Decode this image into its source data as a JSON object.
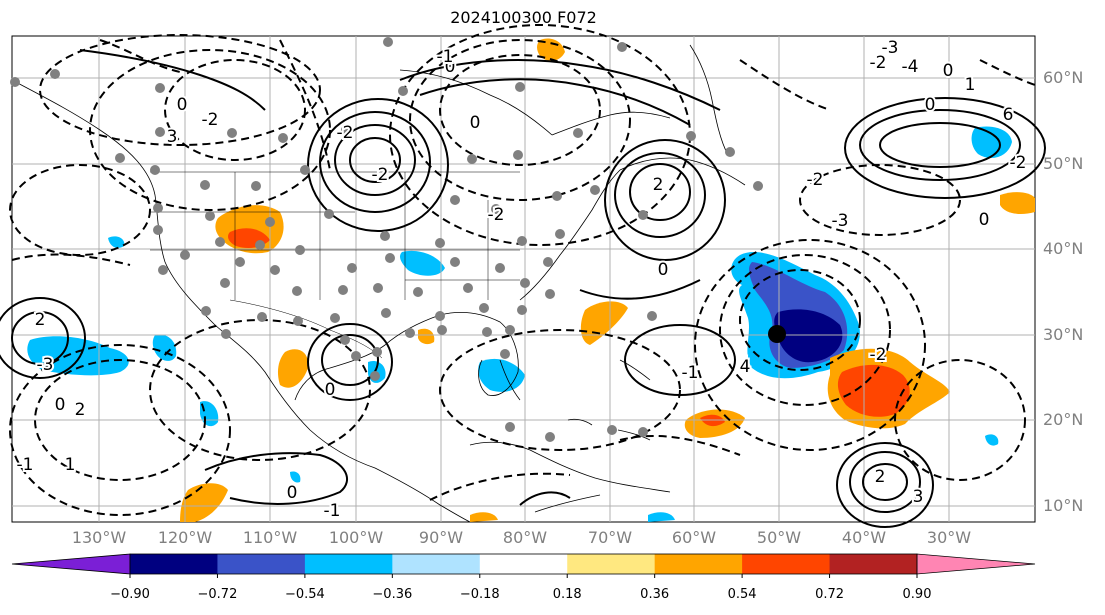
{
  "title": "2024100300 F072",
  "lat_labels": [
    "60°N",
    "50°N",
    "40°N",
    "30°N",
    "20°N",
    "10°N"
  ],
  "lon_labels": [
    "130°W",
    "120°W",
    "110°W",
    "100°W",
    "90°W",
    "80°W",
    "70°W",
    "60°W",
    "50°W",
    "40°W",
    "30°W"
  ],
  "colorbar": {
    "ticks": [
      "−0.90",
      "−0.72",
      "−0.54",
      "−0.36",
      "−0.18",
      "0.18",
      "0.36",
      "0.54",
      "0.72",
      "0.90"
    ],
    "colors": [
      "#7b1fd6",
      "#000080",
      "#3a53c8",
      "#00bfff",
      "#afe3ff",
      "#ffffff",
      "#ffe880",
      "#ffa500",
      "#ff4500",
      "#b22222",
      "#ff85b3"
    ]
  },
  "contour_labels": [
    "3",
    "0",
    "-2",
    "2",
    "-3",
    "0",
    "1",
    "-1",
    "2",
    "0",
    "-2",
    "-2",
    "0",
    "-1",
    "0",
    "-2",
    "2",
    "0",
    "-1",
    "4",
    "6",
    "-2",
    "0",
    "-2",
    "-3",
    "-4",
    "-2",
    "0",
    "1",
    "0",
    "2",
    "3",
    "-3",
    "-2",
    "0",
    "-1"
  ],
  "colors": {
    "background": "#ffffff",
    "axis_label": "#808080",
    "grid": "#b0b0b0",
    "station": "#808080",
    "center_marker": "#000000"
  }
}
